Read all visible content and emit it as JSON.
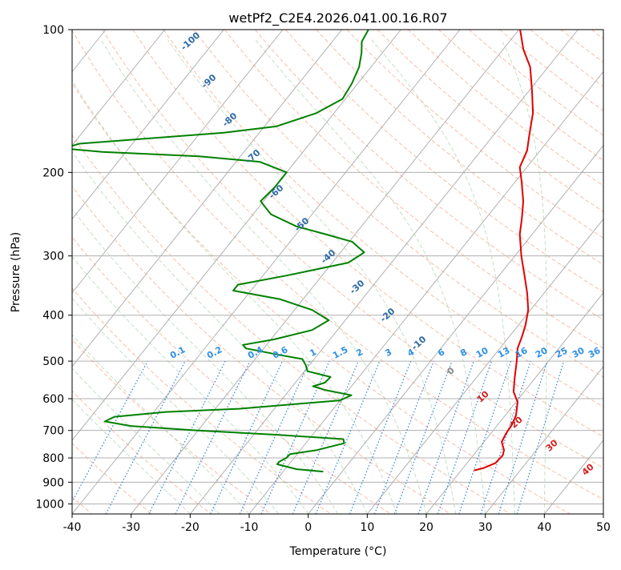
{
  "figure": {
    "title": "wetPf2_C2E4.2026.041.00.16.R07"
  },
  "chart_data": {
    "type": "skew-t",
    "title": "wetPf2_C2E4.2026.041.00.16.R07",
    "xlabel": "Temperature (°C)",
    "ylabel": "Pressure (hPa)",
    "xlim": [
      -40,
      50
    ],
    "ylim": [
      1050,
      100
    ],
    "y_scale": "log",
    "x_ticks": [
      -40,
      -30,
      -20,
      -10,
      0,
      10,
      20,
      30,
      40,
      50
    ],
    "y_ticks": [
      100,
      200,
      300,
      400,
      500,
      600,
      700,
      800,
      900,
      1000
    ],
    "grid": true,
    "series": [
      {
        "kind": "temperature",
        "color": "#e00000",
        "points": [
          [
            850,
            22.2
          ],
          [
            840,
            23.5
          ],
          [
            820,
            24.8
          ],
          [
            790,
            25.0
          ],
          [
            770,
            24.5
          ],
          [
            740,
            23.0
          ],
          [
            710,
            22.6
          ],
          [
            680,
            22.4
          ],
          [
            650,
            21.8
          ],
          [
            610,
            20.3
          ],
          [
            580,
            18.2
          ],
          [
            540,
            16.4
          ],
          [
            500,
            14.6
          ],
          [
            470,
            13.0
          ],
          [
            445,
            12.2
          ],
          [
            420,
            11.2
          ],
          [
            390,
            9.6
          ],
          [
            360,
            7.2
          ],
          [
            330,
            4.3
          ],
          [
            300,
            1.1
          ],
          [
            270,
            -2.1
          ],
          [
            250,
            -3.9
          ],
          [
            230,
            -6.0
          ],
          [
            210,
            -8.8
          ],
          [
            195,
            -11.2
          ],
          [
            180,
            -12.2
          ],
          [
            165,
            -14.2
          ],
          [
            150,
            -16.3
          ],
          [
            135,
            -19.4
          ],
          [
            120,
            -23.0
          ],
          [
            110,
            -26.6
          ],
          [
            100,
            -29.8
          ]
        ]
      },
      {
        "kind": "dewpoint",
        "color": "#008000",
        "points": [
          [
            855,
            -3.2
          ],
          [
            845,
            -8.0
          ],
          [
            825,
            -12.0
          ],
          [
            815,
            -12.0
          ],
          [
            800,
            -11.3
          ],
          [
            785,
            -11.2
          ],
          [
            770,
            -7.2
          ],
          [
            745,
            -3.5
          ],
          [
            730,
            -4.2
          ],
          [
            715,
            -16.0
          ],
          [
            700,
            -30.0
          ],
          [
            685,
            -42.0
          ],
          [
            670,
            -47.0
          ],
          [
            655,
            -46.0
          ],
          [
            640,
            -38.0
          ],
          [
            630,
            -26.0
          ],
          [
            605,
            -10.0
          ],
          [
            590,
            -8.8
          ],
          [
            575,
            -14.0
          ],
          [
            565,
            -16.5
          ],
          [
            555,
            -15.0
          ],
          [
            540,
            -14.8
          ],
          [
            525,
            -19.5
          ],
          [
            510,
            -20.6
          ],
          [
            495,
            -22.0
          ],
          [
            485,
            -26.5
          ],
          [
            470,
            -33.0
          ],
          [
            462,
            -34.0
          ],
          [
            450,
            -29.5
          ],
          [
            430,
            -24.3
          ],
          [
            410,
            -22.8
          ],
          [
            390,
            -27.0
          ],
          [
            370,
            -34.0
          ],
          [
            355,
            -43.0
          ],
          [
            345,
            -43.0
          ],
          [
            330,
            -36.0
          ],
          [
            310,
            -27.3
          ],
          [
            295,
            -26.0
          ],
          [
            280,
            -29.5
          ],
          [
            270,
            -35.0
          ],
          [
            260,
            -41.0
          ],
          [
            245,
            -47.0
          ],
          [
            230,
            -50.5
          ],
          [
            215,
            -50.0
          ],
          [
            200,
            -50.0
          ],
          [
            190,
            -56.0
          ],
          [
            185,
            -67.0
          ],
          [
            181,
            -84.0
          ],
          [
            178,
            -91.0
          ],
          [
            174,
            -89.0
          ],
          [
            170,
            -79.0
          ],
          [
            165,
            -66.0
          ],
          [
            160,
            -58.0
          ],
          [
            150,
            -53.0
          ],
          [
            140,
            -50.5
          ],
          [
            130,
            -51.0
          ],
          [
            120,
            -52.0
          ],
          [
            112,
            -53.5
          ],
          [
            106,
            -55.0
          ],
          [
            100,
            -55.5
          ]
        ]
      }
    ],
    "dry_adiabat_labels": [
      -100,
      -90,
      -80,
      -70,
      -60,
      -50,
      -40,
      -30,
      -20,
      -10,
      0,
      10,
      20,
      30,
      40
    ],
    "mixing_ratio_labels": [
      "0.1",
      "0.2",
      "0.4",
      "0.6",
      "1",
      "1.5",
      "2",
      "3",
      "4",
      "6",
      "8",
      "10",
      "13",
      "16",
      "20",
      "25",
      "30",
      "36"
    ]
  }
}
